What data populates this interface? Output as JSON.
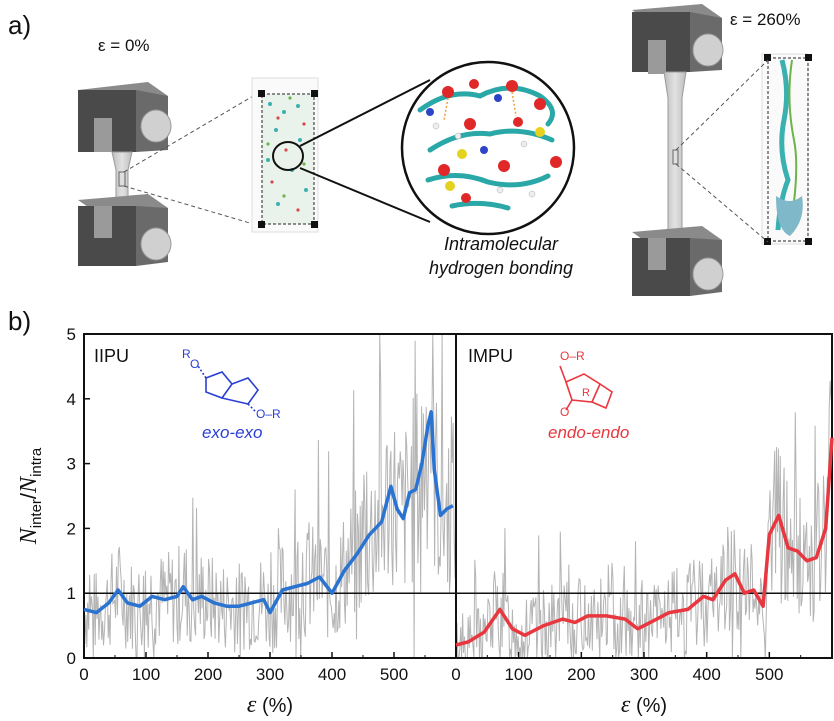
{
  "panel_a": {
    "label": "a)",
    "strain_left": "ε = 0%",
    "strain_right": "ε = 260%",
    "caption_line1": "Intramolecular",
    "caption_line2": "hydrogen bonding"
  },
  "panel_b": {
    "label": "b)",
    "left": {
      "name": "IIPU",
      "structure_label": "exo-exo",
      "sub_R1": "R",
      "sub_R2": "O–R",
      "sub_O": "O"
    },
    "right": {
      "name": "IMPU",
      "structure_label": "endo-endo",
      "sub_R1": "O–R",
      "sub_R2": "R",
      "sub_O": "O"
    }
  },
  "colors": {
    "blue": "#2b73d0",
    "red": "#e8373e",
    "gray": "#b4b4b4",
    "struct_blue": "#2a3fd6",
    "struct_red": "#e8373e"
  },
  "chart_data": [
    {
      "type": "line",
      "title": "IIPU",
      "xlabel": "ε (%)",
      "ylabel": "N_inter/N_intra",
      "xlim": [
        0,
        600
      ],
      "ylim": [
        0,
        5
      ],
      "xticks": [
        "0",
        "100",
        "200",
        "300",
        "400",
        "500"
      ],
      "yticks": [
        "0",
        "1",
        "2",
        "3",
        "4",
        "5"
      ],
      "reference_line_y": 1,
      "series": [
        {
          "style": "smoothed-blue",
          "x": [
            0,
            20,
            40,
            55,
            70,
            90,
            110,
            130,
            150,
            160,
            175,
            190,
            210,
            230,
            250,
            270,
            290,
            300,
            320,
            340,
            360,
            380,
            400,
            420,
            440,
            460,
            480,
            495,
            505,
            515,
            525,
            535,
            545,
            555,
            560,
            565,
            575,
            585,
            595
          ],
          "y": [
            0.75,
            0.7,
            0.85,
            1.05,
            0.85,
            0.8,
            0.95,
            0.9,
            0.95,
            1.1,
            0.9,
            0.95,
            0.85,
            0.8,
            0.8,
            0.85,
            0.9,
            0.7,
            1.05,
            1.1,
            1.15,
            1.25,
            1.0,
            1.35,
            1.6,
            1.9,
            2.1,
            2.65,
            2.3,
            2.15,
            2.55,
            2.6,
            3.0,
            3.6,
            3.8,
            2.9,
            2.2,
            2.3,
            2.35
          ]
        }
      ]
    },
    {
      "type": "line",
      "title": "IMPU",
      "xlabel": "ε (%)",
      "ylabel": "",
      "xlim": [
        0,
        600
      ],
      "ylim": [
        0,
        5
      ],
      "xticks": [
        "0",
        "100",
        "200",
        "300",
        "400",
        "500"
      ],
      "reference_line_y": 1,
      "series": [
        {
          "style": "smoothed-red",
          "x": [
            0,
            20,
            45,
            70,
            90,
            110,
            140,
            170,
            190,
            210,
            240,
            270,
            290,
            310,
            340,
            370,
            395,
            410,
            430,
            445,
            460,
            475,
            490,
            500,
            515,
            530,
            545,
            560,
            575,
            590,
            600
          ],
          "y": [
            0.2,
            0.25,
            0.4,
            0.75,
            0.45,
            0.35,
            0.5,
            0.6,
            0.55,
            0.65,
            0.65,
            0.6,
            0.45,
            0.55,
            0.7,
            0.75,
            0.95,
            0.9,
            1.2,
            1.3,
            1.0,
            1.05,
            0.8,
            1.9,
            2.2,
            1.7,
            1.65,
            1.5,
            1.55,
            2.0,
            3.4
          ]
        }
      ]
    }
  ]
}
